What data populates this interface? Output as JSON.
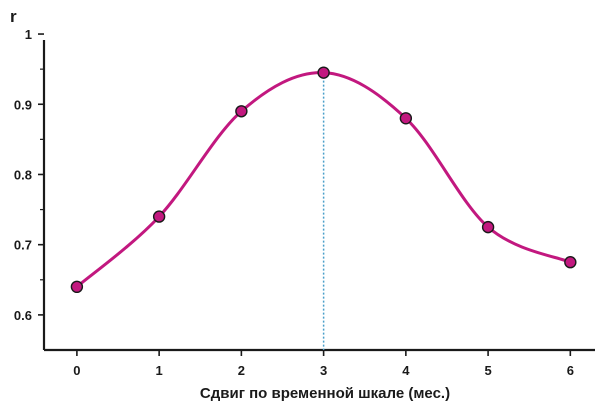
{
  "chart_data": {
    "type": "line",
    "title": "",
    "xlabel": "Сдвиг по временной шкале (мес.)",
    "ylabel": "r",
    "x": [
      0,
      1,
      2,
      3,
      4,
      5,
      6
    ],
    "series": [
      {
        "values": [
          0.64,
          0.74,
          0.89,
          0.945,
          0.88,
          0.725,
          0.675
        ]
      }
    ],
    "xlim": [
      -0.4,
      6.3
    ],
    "ylim": [
      0.55,
      1.02
    ],
    "xticks": [
      0,
      1,
      2,
      3,
      4,
      5,
      6
    ],
    "yticks": [
      0.6,
      0.7,
      0.8,
      0.9,
      1
    ],
    "ytick_labels": [
      "0.6",
      "0.7",
      "0.8",
      "0.9",
      "1"
    ],
    "marker_reference_x": 3,
    "grid": false,
    "legend": "none",
    "colors": {
      "line": "#c2187f",
      "marker_fill": "#c2187f",
      "marker_stroke": "#1a1a1a",
      "axis": "#1a1a1a",
      "reference_line": "#4a9fc9"
    }
  }
}
